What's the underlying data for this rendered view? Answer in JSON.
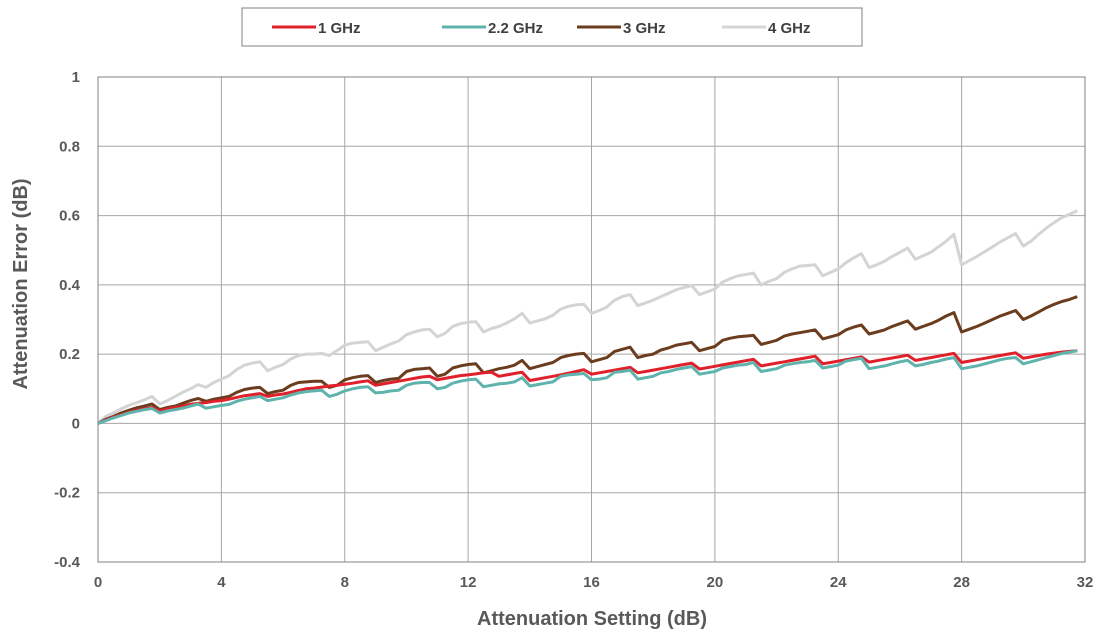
{
  "chart_data": {
    "type": "line",
    "xlabel": "Attenuation Setting (dB)",
    "ylabel": "Attenuation Error (dB)",
    "xlim": [
      0,
      32
    ],
    "ylim": [
      -0.4,
      1
    ],
    "xticks": [
      0,
      4,
      8,
      12,
      16,
      20,
      24,
      28,
      32
    ],
    "yticks": [
      -0.4,
      -0.2,
      0,
      0.2,
      0.4,
      0.6,
      0.8,
      1
    ],
    "ytick_labels": [
      "-0.4",
      "-0.2",
      "0",
      "0.2",
      "0.4",
      "0.6",
      "0.8",
      "1"
    ],
    "grid": true,
    "legend_position": "top-center",
    "x": [
      0,
      0.25,
      0.5,
      0.75,
      1,
      1.25,
      1.5,
      1.75,
      2,
      2.25,
      2.5,
      2.75,
      3,
      3.25,
      3.5,
      3.75,
      4,
      4.25,
      4.5,
      4.75,
      5,
      5.25,
      5.5,
      5.75,
      6,
      6.25,
      6.5,
      6.75,
      7,
      7.25,
      7.5,
      7.75,
      8,
      8.25,
      8.5,
      8.75,
      9,
      9.25,
      9.5,
      9.75,
      10,
      10.25,
      10.5,
      10.75,
      11,
      11.25,
      11.5,
      11.75,
      12,
      12.25,
      12.5,
      12.75,
      13,
      13.25,
      13.5,
      13.75,
      14,
      14.25,
      14.5,
      14.75,
      15,
      15.25,
      15.5,
      15.75,
      16,
      16.25,
      16.5,
      16.75,
      17,
      17.25,
      17.5,
      17.75,
      18,
      18.25,
      18.5,
      18.75,
      19,
      19.25,
      19.5,
      19.75,
      20,
      20.25,
      20.5,
      20.75,
      21,
      21.25,
      21.5,
      21.75,
      22,
      22.25,
      22.5,
      22.75,
      23,
      23.25,
      23.5,
      23.75,
      24,
      24.25,
      24.5,
      24.75,
      25,
      25.25,
      25.5,
      25.75,
      26,
      26.25,
      26.5,
      26.75,
      27,
      27.25,
      27.5,
      27.75,
      28,
      28.25,
      28.5,
      28.75,
      29,
      29.25,
      29.5,
      29.75,
      30,
      30.25,
      30.5,
      30.75,
      31,
      31.25,
      31.5,
      31.75
    ],
    "series": [
      {
        "name": "1 GHz",
        "color": "#e0202a",
        "values": [
          0,
          0.009,
          0.018,
          0.025,
          0.032,
          0.038,
          0.042,
          0.046,
          0.036,
          0.042,
          0.046,
          0.05,
          0.055,
          0.058,
          0.06,
          0.064,
          0.066,
          0.07,
          0.075,
          0.08,
          0.083,
          0.086,
          0.078,
          0.082,
          0.085,
          0.09,
          0.095,
          0.1,
          0.102,
          0.105,
          0.108,
          0.11,
          0.113,
          0.116,
          0.12,
          0.123,
          0.11,
          0.114,
          0.118,
          0.122,
          0.126,
          0.13,
          0.134,
          0.136,
          0.126,
          0.13,
          0.134,
          0.138,
          0.14,
          0.143,
          0.146,
          0.148,
          0.136,
          0.14,
          0.144,
          0.148,
          0.124,
          0.128,
          0.132,
          0.136,
          0.14,
          0.145,
          0.15,
          0.155,
          0.142,
          0.146,
          0.15,
          0.154,
          0.158,
          0.162,
          0.146,
          0.15,
          0.154,
          0.158,
          0.162,
          0.166,
          0.17,
          0.174,
          0.157,
          0.161,
          0.165,
          0.169,
          0.173,
          0.177,
          0.181,
          0.185,
          0.166,
          0.17,
          0.174,
          0.178,
          0.182,
          0.186,
          0.19,
          0.194,
          0.172,
          0.176,
          0.18,
          0.184,
          0.188,
          0.192,
          0.177,
          0.181,
          0.185,
          0.189,
          0.193,
          0.197,
          0.182,
          0.186,
          0.19,
          0.194,
          0.198,
          0.202,
          0.176,
          0.18,
          0.184,
          0.188,
          0.192,
          0.196,
          0.2,
          0.204,
          0.188,
          0.192,
          0.196,
          0.2,
          0.203,
          0.206,
          0.208,
          0.21
        ]
      },
      {
        "name": "2.2 GHz",
        "color": "#5fb3ad",
        "values": [
          0,
          0.008,
          0.016,
          0.023,
          0.03,
          0.035,
          0.04,
          0.043,
          0.03,
          0.036,
          0.04,
          0.044,
          0.05,
          0.056,
          0.044,
          0.048,
          0.052,
          0.055,
          0.064,
          0.07,
          0.074,
          0.078,
          0.066,
          0.07,
          0.074,
          0.082,
          0.088,
          0.092,
          0.094,
          0.096,
          0.078,
          0.084,
          0.094,
          0.1,
          0.104,
          0.106,
          0.088,
          0.09,
          0.094,
          0.096,
          0.11,
          0.116,
          0.118,
          0.118,
          0.1,
          0.104,
          0.116,
          0.122,
          0.126,
          0.128,
          0.106,
          0.11,
          0.114,
          0.116,
          0.12,
          0.132,
          0.108,
          0.112,
          0.116,
          0.12,
          0.136,
          0.14,
          0.142,
          0.144,
          0.126,
          0.128,
          0.132,
          0.148,
          0.15,
          0.154,
          0.128,
          0.132,
          0.136,
          0.146,
          0.15,
          0.156,
          0.16,
          0.164,
          0.142,
          0.146,
          0.15,
          0.16,
          0.164,
          0.168,
          0.17,
          0.176,
          0.15,
          0.154,
          0.158,
          0.168,
          0.172,
          0.176,
          0.178,
          0.182,
          0.16,
          0.164,
          0.168,
          0.18,
          0.184,
          0.188,
          0.158,
          0.162,
          0.166,
          0.172,
          0.178,
          0.182,
          0.166,
          0.17,
          0.176,
          0.18,
          0.186,
          0.19,
          0.158,
          0.162,
          0.166,
          0.172,
          0.178,
          0.184,
          0.188,
          0.19,
          0.172,
          0.178,
          0.184,
          0.19,
          0.196,
          0.202,
          0.206,
          0.21
        ]
      },
      {
        "name": "3 GHz",
        "color": "#6b3d1e",
        "values": [
          0,
          0.012,
          0.02,
          0.03,
          0.038,
          0.045,
          0.05,
          0.056,
          0.04,
          0.046,
          0.05,
          0.058,
          0.066,
          0.072,
          0.064,
          0.07,
          0.074,
          0.078,
          0.09,
          0.098,
          0.102,
          0.104,
          0.086,
          0.092,
          0.096,
          0.11,
          0.118,
          0.12,
          0.122,
          0.122,
          0.104,
          0.11,
          0.126,
          0.132,
          0.136,
          0.138,
          0.118,
          0.124,
          0.128,
          0.13,
          0.15,
          0.156,
          0.158,
          0.16,
          0.136,
          0.142,
          0.16,
          0.166,
          0.17,
          0.172,
          0.146,
          0.152,
          0.158,
          0.162,
          0.168,
          0.182,
          0.158,
          0.164,
          0.17,
          0.176,
          0.19,
          0.196,
          0.2,
          0.202,
          0.178,
          0.184,
          0.19,
          0.208,
          0.214,
          0.22,
          0.19,
          0.196,
          0.2,
          0.212,
          0.218,
          0.226,
          0.23,
          0.234,
          0.21,
          0.216,
          0.222,
          0.24,
          0.246,
          0.25,
          0.252,
          0.254,
          0.228,
          0.234,
          0.24,
          0.252,
          0.258,
          0.262,
          0.266,
          0.27,
          0.244,
          0.25,
          0.256,
          0.27,
          0.278,
          0.284,
          0.258,
          0.264,
          0.27,
          0.28,
          0.288,
          0.296,
          0.272,
          0.28,
          0.288,
          0.298,
          0.31,
          0.32,
          0.264,
          0.272,
          0.28,
          0.29,
          0.3,
          0.31,
          0.318,
          0.326,
          0.3,
          0.31,
          0.322,
          0.334,
          0.344,
          0.352,
          0.358,
          0.366
        ]
      },
      {
        "name": "4 GHz",
        "color": "#d4d4d4",
        "values": [
          0,
          0.02,
          0.03,
          0.042,
          0.052,
          0.06,
          0.068,
          0.078,
          0.056,
          0.066,
          0.078,
          0.09,
          0.1,
          0.112,
          0.104,
          0.118,
          0.128,
          0.138,
          0.156,
          0.168,
          0.174,
          0.178,
          0.152,
          0.162,
          0.17,
          0.186,
          0.196,
          0.2,
          0.2,
          0.202,
          0.196,
          0.21,
          0.226,
          0.232,
          0.234,
          0.236,
          0.21,
          0.22,
          0.23,
          0.238,
          0.256,
          0.264,
          0.27,
          0.272,
          0.25,
          0.26,
          0.28,
          0.288,
          0.292,
          0.294,
          0.264,
          0.274,
          0.28,
          0.29,
          0.302,
          0.318,
          0.29,
          0.296,
          0.302,
          0.312,
          0.33,
          0.338,
          0.342,
          0.344,
          0.318,
          0.326,
          0.336,
          0.356,
          0.366,
          0.372,
          0.34,
          0.348,
          0.356,
          0.366,
          0.376,
          0.386,
          0.392,
          0.398,
          0.372,
          0.38,
          0.388,
          0.408,
          0.418,
          0.426,
          0.43,
          0.434,
          0.4,
          0.41,
          0.418,
          0.436,
          0.446,
          0.454,
          0.456,
          0.458,
          0.426,
          0.436,
          0.446,
          0.464,
          0.478,
          0.49,
          0.45,
          0.458,
          0.468,
          0.482,
          0.494,
          0.506,
          0.474,
          0.484,
          0.494,
          0.51,
          0.526,
          0.546,
          0.458,
          0.47,
          0.482,
          0.496,
          0.51,
          0.524,
          0.536,
          0.548,
          0.512,
          0.526,
          0.546,
          0.564,
          0.58,
          0.594,
          0.604,
          0.614
        ]
      }
    ]
  }
}
